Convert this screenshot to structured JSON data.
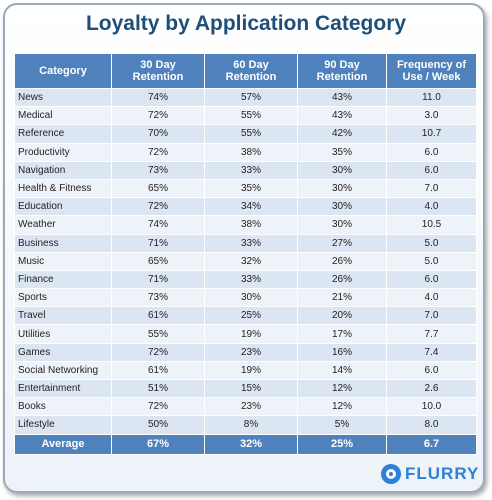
{
  "chart_data": {
    "type": "table",
    "title": "Loyalty by Application Category",
    "columns": [
      "Category",
      "30 Day\nRetention",
      "60 Day\nRetention",
      "90 Day\nRetention",
      "Frequency of\nUse / Week"
    ],
    "rows": [
      [
        "News",
        "74%",
        "57%",
        "43%",
        "11.0"
      ],
      [
        "Medical",
        "72%",
        "55%",
        "43%",
        "3.0"
      ],
      [
        "Reference",
        "70%",
        "55%",
        "42%",
        "10.7"
      ],
      [
        "Productivity",
        "72%",
        "38%",
        "35%",
        "6.0"
      ],
      [
        "Navigation",
        "73%",
        "33%",
        "30%",
        "6.0"
      ],
      [
        "Health & Fitness",
        "65%",
        "35%",
        "30%",
        "7.0"
      ],
      [
        "Education",
        "72%",
        "34%",
        "30%",
        "4.0"
      ],
      [
        "Weather",
        "74%",
        "38%",
        "30%",
        "10.5"
      ],
      [
        "Business",
        "71%",
        "33%",
        "27%",
        "5.0"
      ],
      [
        "Music",
        "65%",
        "32%",
        "26%",
        "5.0"
      ],
      [
        "Finance",
        "71%",
        "33%",
        "26%",
        "6.0"
      ],
      [
        "Sports",
        "73%",
        "30%",
        "21%",
        "4.0"
      ],
      [
        "Travel",
        "61%",
        "25%",
        "20%",
        "7.0"
      ],
      [
        "Utilities",
        "55%",
        "19%",
        "17%",
        "7.7"
      ],
      [
        "Games",
        "72%",
        "23%",
        "16%",
        "7.4"
      ],
      [
        "Social Networking",
        "61%",
        "19%",
        "14%",
        "6.0"
      ],
      [
        "Entertainment",
        "51%",
        "15%",
        "12%",
        "2.6"
      ],
      [
        "Books",
        "72%",
        "23%",
        "12%",
        "10.0"
      ],
      [
        "Lifestyle",
        "50%",
        "8%",
        "5%",
        "8.0"
      ]
    ],
    "footer": [
      "Average",
      "67%",
      "32%",
      "25%",
      "6.7"
    ]
  },
  "branding": {
    "logo_text": "FLURRY",
    "logo_color": "#2e7fd6"
  },
  "colors": {
    "header_bg": "#4f81bd",
    "title": "#1f4e79",
    "row_odd": "#dce6f2",
    "row_even": "#eef3f9"
  }
}
